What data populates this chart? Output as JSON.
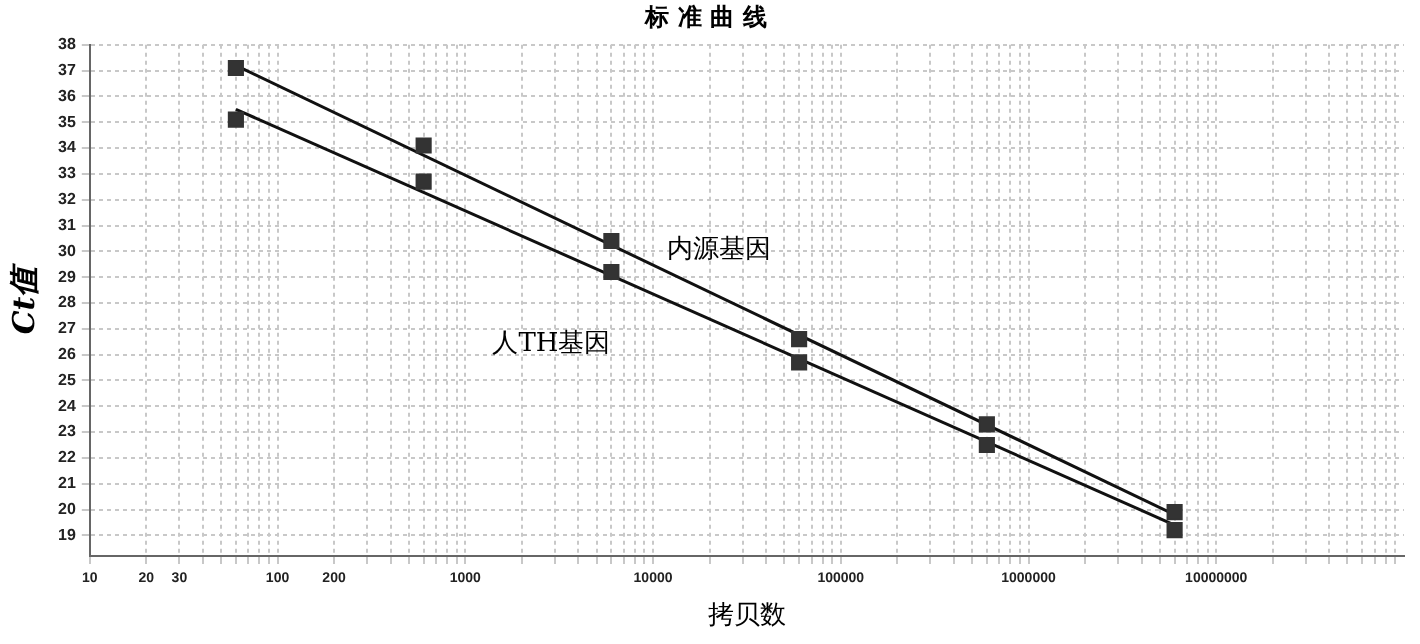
{
  "chart_data": {
    "type": "scatter",
    "title": "标 准 曲 线",
    "xlabel": "拷贝数",
    "ylabel": "Ct值",
    "log": "x",
    "grid": true,
    "marker": "square",
    "xlim": [
      10,
      100000000
    ],
    "ylim": [
      18.2,
      38
    ],
    "xticks": [
      10,
      20,
      30,
      {
        "value": 40,
        "label": null
      },
      {
        "value": 50,
        "label": null
      },
      {
        "value": 60,
        "label": null
      },
      {
        "value": 70,
        "label": null
      },
      {
        "value": 80,
        "label": null
      },
      {
        "value": 90,
        "label": null
      },
      100,
      200,
      {
        "value": 300,
        "label": null
      },
      {
        "value": 400,
        "label": null
      },
      {
        "value": 500,
        "label": null
      },
      {
        "value": 600,
        "label": null
      },
      {
        "value": 700,
        "label": null
      },
      {
        "value": 800,
        "label": null
      },
      {
        "value": 900,
        "label": null
      },
      1000,
      {
        "value": 2000,
        "label": null
      },
      {
        "value": 3000,
        "label": null
      },
      {
        "value": 4000,
        "label": null
      },
      {
        "value": 5000,
        "label": null
      },
      {
        "value": 6000,
        "label": null
      },
      {
        "value": 7000,
        "label": null
      },
      {
        "value": 8000,
        "label": null
      },
      {
        "value": 9000,
        "label": null
      },
      10000,
      {
        "value": 20000,
        "label": null
      },
      {
        "value": 30000,
        "label": null
      },
      {
        "value": 40000,
        "label": null
      },
      {
        "value": 50000,
        "label": null
      },
      {
        "value": 60000,
        "label": null
      },
      {
        "value": 70000,
        "label": null
      },
      {
        "value": 80000,
        "label": null
      },
      {
        "value": 90000,
        "label": null
      },
      100000,
      {
        "value": 200000,
        "label": null
      },
      {
        "value": 300000,
        "label": null
      },
      {
        "value": 400000,
        "label": null
      },
      {
        "value": 500000,
        "label": null
      },
      {
        "value": 600000,
        "label": null
      },
      {
        "value": 700000,
        "label": null
      },
      {
        "value": 800000,
        "label": null
      },
      {
        "value": 900000,
        "label": null
      },
      1000000,
      {
        "value": 2000000,
        "label": null
      },
      {
        "value": 3000000,
        "label": null
      },
      {
        "value": 4000000,
        "label": null
      },
      {
        "value": 5000000,
        "label": null
      },
      {
        "value": 6000000,
        "label": null
      },
      {
        "value": 7000000,
        "label": null
      },
      {
        "value": 8000000,
        "label": null
      },
      {
        "value": 9000000,
        "label": null
      },
      10000000,
      {
        "value": 20000000,
        "label": null
      },
      {
        "value": 30000000,
        "label": null
      },
      {
        "value": 40000000,
        "label": null
      },
      {
        "value": 50000000,
        "label": null
      },
      {
        "value": 60000000,
        "label": null
      },
      {
        "value": 70000000,
        "label": null
      },
      {
        "value": 80000000,
        "label": null
      },
      {
        "value": 90000000,
        "label": null
      }
    ],
    "yticks": [
      19,
      20,
      21,
      22,
      23,
      24,
      25,
      26,
      27,
      28,
      29,
      30,
      31,
      32,
      33,
      34,
      35,
      36,
      37,
      38
    ],
    "series": [
      {
        "color": "#333333",
        "x": [
          60,
          600,
          6000,
          60000,
          600000,
          6000000
        ],
        "values": [
          37.1,
          34.1,
          30.4,
          26.6,
          23.3,
          19.9
        ]
      },
      {
        "color": "#333333",
        "x": [
          60,
          600,
          6000,
          60000,
          600000,
          6000000
        ],
        "values": [
          35.1,
          32.7,
          29.2,
          25.7,
          22.5,
          19.2
        ]
      },
      {
        "type": "line",
        "name": "内源基因",
        "marker": "none",
        "color": "#111111",
        "x": [
          60,
          6000000
        ],
        "values": [
          37.2,
          19.8
        ]
      },
      {
        "type": "line",
        "name": "人TH基因",
        "marker": "none",
        "color": "#111111",
        "x": [
          60,
          6000000
        ],
        "values": [
          35.5,
          19.4
        ]
      }
    ]
  }
}
